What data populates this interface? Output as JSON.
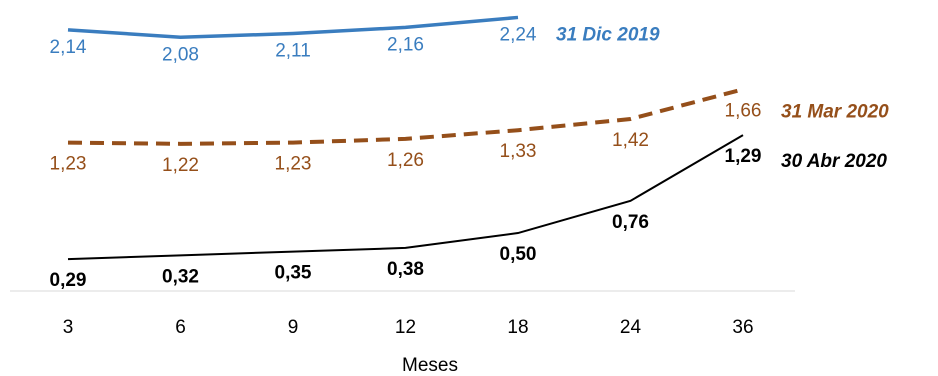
{
  "chart_data": {
    "type": "line",
    "x_label": "Meses",
    "categories": [
      "3",
      "6",
      "9",
      "12",
      "18",
      "24",
      "36"
    ],
    "ylim": [
      0,
      2.3
    ],
    "series": [
      {
        "name": "31 Dic 2019",
        "color": "#3a7dbf",
        "values": [
          2.14,
          2.08,
          2.11,
          2.16,
          2.24,
          null,
          null
        ],
        "value_labels": [
          "2,14",
          "2,08",
          "2,11",
          "2,16",
          "2,24",
          null,
          null
        ]
      },
      {
        "name": "31 Mar 2020",
        "color": "#954f1a",
        "values": [
          1.23,
          1.22,
          1.23,
          1.26,
          1.33,
          1.42,
          1.66
        ],
        "value_labels": [
          "1,23",
          "1,22",
          "1,23",
          "1,26",
          "1,33",
          "1,42",
          "1,66"
        ]
      },
      {
        "name": "30 Abr 2020",
        "color": "#000000",
        "values": [
          0.29,
          0.32,
          0.35,
          0.38,
          0.5,
          0.76,
          1.29
        ],
        "value_labels": [
          "0,29",
          "0,32",
          "0,35",
          "0,38",
          "0,50",
          "0,76",
          "1,29"
        ]
      }
    ]
  }
}
